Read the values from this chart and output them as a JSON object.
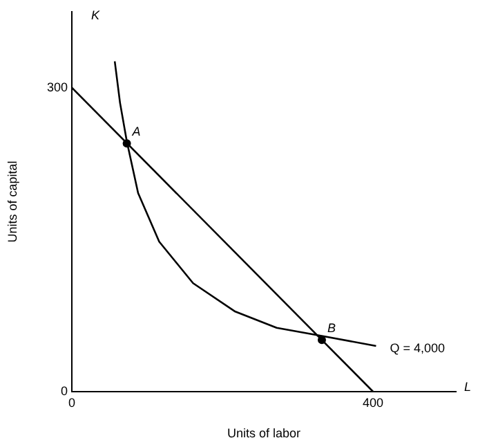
{
  "chart_data": {
    "type": "line",
    "xlabel": "Units of labor",
    "ylabel": "Units of capital",
    "xlim": [
      0,
      510
    ],
    "ylim": [
      0,
      375
    ],
    "xticks": [
      0,
      400
    ],
    "yticks": [
      0,
      300
    ],
    "grid": false,
    "legend": false,
    "marker": "none",
    "line_style": "solid",
    "series": [
      {
        "x": [
          0,
          400
        ],
        "values": [
          300,
          0
        ],
        "color": "#000000"
      },
      {
        "name": "Q = 4,000",
        "x": [
          57,
          64,
          73,
          88,
          116,
          161,
          217,
          272,
          332,
          404
        ],
        "values": [
          326,
          285,
          247,
          196,
          148,
          107,
          79,
          63,
          55,
          45
        ],
        "color": "#000000"
      },
      {
        "type": "scatter",
        "marker": "circle",
        "x": [
          73,
          332
        ],
        "values": [
          245,
          51
        ],
        "color": "#000000"
      }
    ],
    "annotations": [
      "K",
      "L",
      {
        "text": "A",
        "x": 73,
        "y": 245
      },
      {
        "text": "B",
        "x": 332,
        "y": 51
      }
    ]
  }
}
